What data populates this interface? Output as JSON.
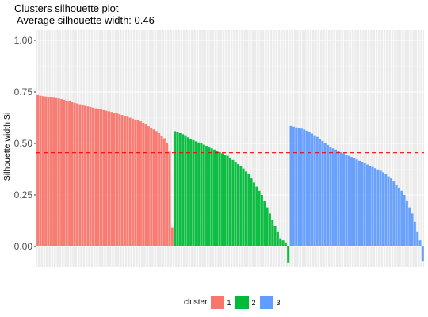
{
  "chart_data": {
    "type": "bar",
    "title": "Clusters silhouette plot",
    "subtitle": " Average silhouette width: 0.46",
    "xlabel": "",
    "ylabel": "Silhouette width Si",
    "ylim": [
      -0.1,
      1.05
    ],
    "yticks": [
      "0.00",
      "0.25",
      "0.50",
      "0.75",
      "1.00"
    ],
    "average_line": 0.455,
    "grid": true,
    "legend_position": "bottom",
    "legend_title": "cluster",
    "series": [
      {
        "name": "1",
        "color": "#F8766D",
        "values": [
          0.735,
          0.732,
          0.73,
          0.728,
          0.726,
          0.724,
          0.722,
          0.72,
          0.718,
          0.715,
          0.712,
          0.708,
          0.704,
          0.7,
          0.697,
          0.694,
          0.69,
          0.686,
          0.683,
          0.68,
          0.677,
          0.674,
          0.671,
          0.668,
          0.665,
          0.662,
          0.659,
          0.656,
          0.653,
          0.65,
          0.646,
          0.642,
          0.638,
          0.634,
          0.63,
          0.625,
          0.62,
          0.616,
          0.612,
          0.607,
          0.6,
          0.592,
          0.584,
          0.576,
          0.568,
          0.56,
          0.55,
          0.538,
          0.525,
          0.5,
          0.46,
          0.09
        ]
      },
      {
        "name": "2",
        "color": "#00BA38",
        "values": [
          0.56,
          0.555,
          0.55,
          0.545,
          0.54,
          0.53,
          0.522,
          0.516,
          0.51,
          0.505,
          0.5,
          0.494,
          0.488,
          0.482,
          0.476,
          0.47,
          0.464,
          0.458,
          0.452,
          0.446,
          0.44,
          0.43,
          0.42,
          0.41,
          0.4,
          0.39,
          0.378,
          0.364,
          0.35,
          0.33,
          0.31,
          0.29,
          0.27,
          0.25,
          0.22,
          0.19,
          0.16,
          0.13,
          0.1,
          0.07,
          0.04,
          0.03,
          0.02,
          -0.08
        ]
      },
      {
        "name": "3",
        "color": "#619CFF",
        "values": [
          0.585,
          0.582,
          0.578,
          0.575,
          0.572,
          0.568,
          0.562,
          0.556,
          0.548,
          0.54,
          0.532,
          0.522,
          0.512,
          0.502,
          0.492,
          0.484,
          0.476,
          0.47,
          0.464,
          0.458,
          0.452,
          0.446,
          0.44,
          0.434,
          0.428,
          0.422,
          0.416,
          0.41,
          0.404,
          0.398,
          0.392,
          0.386,
          0.38,
          0.374,
          0.368,
          0.36,
          0.35,
          0.34,
          0.33,
          0.315,
          0.3,
          0.285,
          0.27,
          0.25,
          0.22,
          0.19,
          0.16,
          0.12,
          0.07,
          0.03,
          -0.07
        ]
      }
    ]
  }
}
